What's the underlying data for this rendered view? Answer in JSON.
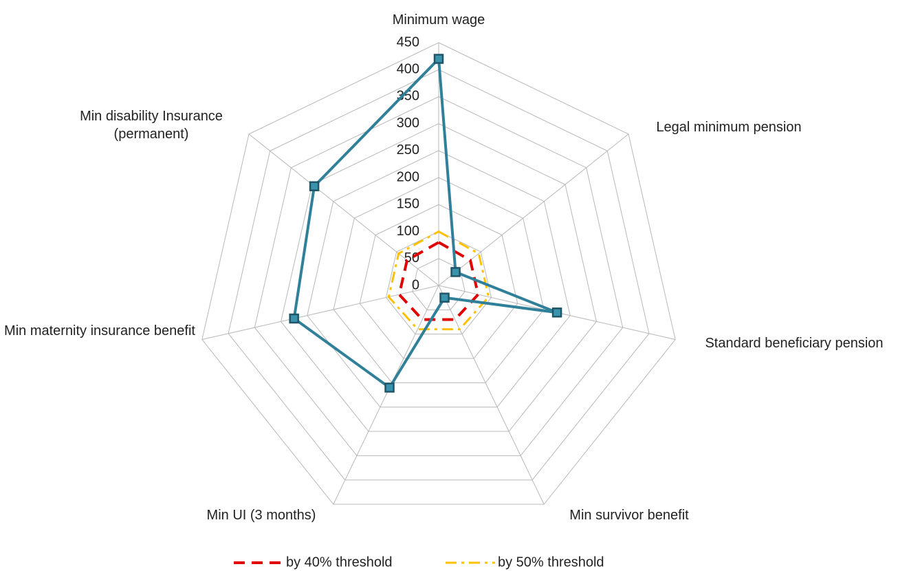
{
  "chart_data": {
    "type": "radar",
    "categories": [
      "Minimum wage",
      "Legal minimum pension",
      "Standard beneficiary pension",
      "Min survivor benefit",
      "Min UI (3 months)",
      "Min maternity insurance benefit",
      "Min disability Insurance (permanent)"
    ],
    "series": [
      {
        "color": "#31809a",
        "values": [
          420,
          40,
          225,
          25,
          210,
          275,
          295
        ]
      },
      {
        "name": "by 40% threshold",
        "color": "#e00000",
        "values": [
          80,
          75,
          75,
          70,
          70,
          75,
          75
        ]
      },
      {
        "name": "by 50% threshold",
        "color": "#ffc000",
        "values": [
          100,
          95,
          95,
          90,
          90,
          95,
          95
        ]
      }
    ],
    "ylim": [
      0,
      450
    ],
    "yticks": [
      0,
      50,
      100,
      150,
      200,
      250,
      300,
      350,
      400,
      450
    ],
    "grid": true,
    "legend": "bottom"
  }
}
